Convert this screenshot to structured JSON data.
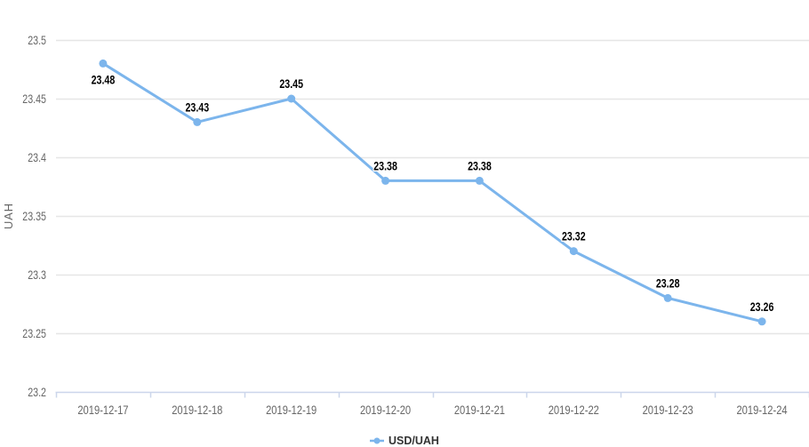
{
  "chart_data": {
    "type": "line",
    "title": "",
    "categories": [
      "2019-12-17",
      "2019-12-18",
      "2019-12-19",
      "2019-12-20",
      "2019-12-21",
      "2019-12-22",
      "2019-12-23",
      "2019-12-24"
    ],
    "series": [
      {
        "name": "USD/UAH",
        "values": [
          23.48,
          23.43,
          23.45,
          23.38,
          23.38,
          23.32,
          23.28,
          23.26
        ],
        "data_labels": [
          "23.48",
          "23.43",
          "23.45",
          "23.38",
          "23.38",
          "23.32",
          "23.28",
          "23.26"
        ]
      }
    ],
    "xlabel": "",
    "ylabel": "UAH",
    "ylim": [
      23.2,
      23.5
    ],
    "yticks": [
      "23.5",
      "23.45",
      "23.4",
      "23.35",
      "23.3",
      "23.25",
      "23.2"
    ],
    "grid": true,
    "legend_position": "bottom-center",
    "colors": {
      "line": "#7cb5ec",
      "marker": "#7cb5ec",
      "grid": "#e6e6e6",
      "axis_line": "#ccd6eb",
      "tick_label": "#666666",
      "data_label": "#000000",
      "background": "#ffffff",
      "legend_text": "#333333"
    }
  }
}
